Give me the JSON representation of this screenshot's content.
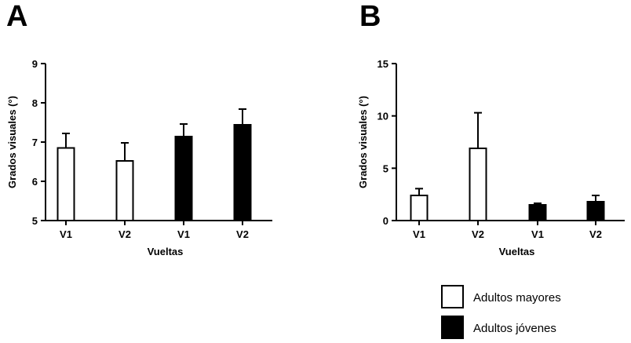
{
  "chart_data": [
    {
      "panel": "A",
      "type": "bar",
      "categories": [
        "V1",
        "V2",
        "V1",
        "V2"
      ],
      "groups": [
        "Adultos mayores",
        "Adultos mayores",
        "Adultos jóvenes",
        "Adultos jóvenes"
      ],
      "values": [
        6.85,
        6.52,
        7.14,
        7.44
      ],
      "errors": [
        0.37,
        0.46,
        0.32,
        0.4
      ],
      "xlabel": "Vueltas",
      "ylabel": "Grados visuales (°)",
      "ylim": [
        5,
        9
      ],
      "yticks": [
        5,
        6,
        7,
        8,
        9
      ],
      "grid": false
    },
    {
      "panel": "B",
      "type": "bar",
      "categories": [
        "V1",
        "V2",
        "V1",
        "V2"
      ],
      "groups": [
        "Adultos mayores",
        "Adultos mayores",
        "Adultos jóvenes",
        "Adultos jóvenes"
      ],
      "values": [
        2.4,
        6.9,
        1.5,
        1.8
      ],
      "errors": [
        0.65,
        3.4,
        0.15,
        0.6
      ],
      "xlabel": "Vueltas",
      "ylabel": "Grados visuales (°)",
      "ylim": [
        0,
        15
      ],
      "yticks": [
        0,
        5,
        10,
        15
      ],
      "grid": false
    }
  ],
  "legend": {
    "placement": "bottom-right",
    "items": [
      {
        "label": "Adultos mayores",
        "fill": "#ffffff"
      },
      {
        "label": "Adultos jóvenes",
        "fill": "#000000"
      }
    ]
  },
  "colors": {
    "Adultos mayores": "#ffffff",
    "Adultos jóvenes": "#000000",
    "stroke": "#000000"
  }
}
